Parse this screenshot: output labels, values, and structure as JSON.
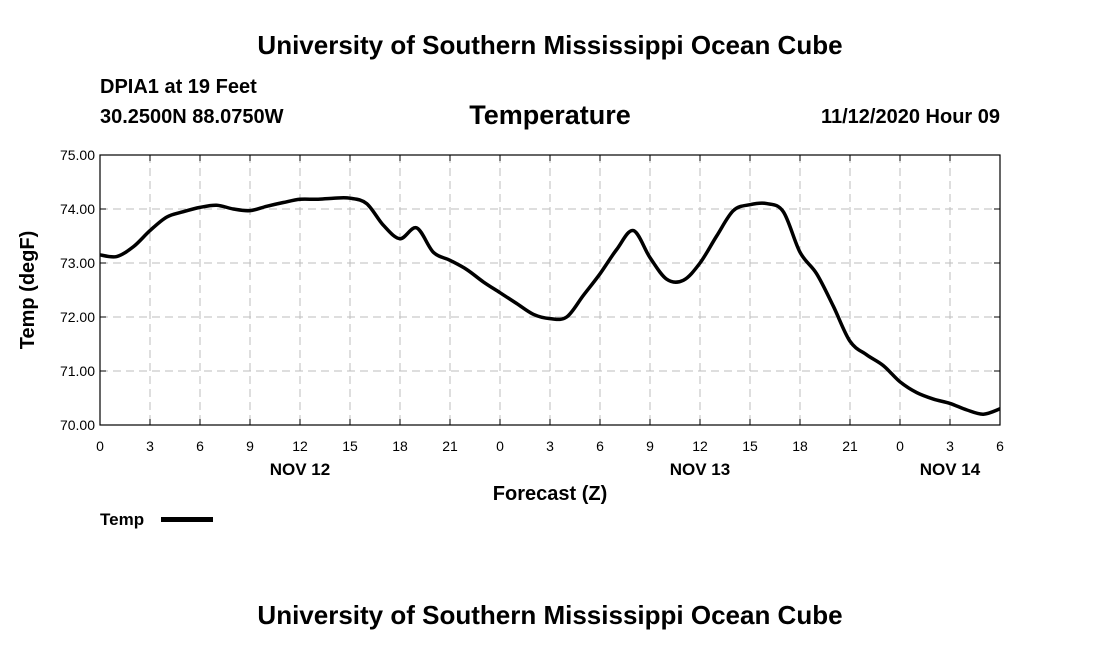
{
  "header": {
    "title_top": "University of Southern Mississippi Ocean Cube",
    "station": "DPIA1 at 19 Feet",
    "coords": "30.2500N 88.0750W",
    "datetime": "11/12/2020 Hour 09"
  },
  "footer": {
    "title_bottom": "University of Southern Mississippi Ocean Cube"
  },
  "legend": {
    "label": "Temp"
  },
  "chart_data": {
    "type": "line",
    "title": "Temperature",
    "xlabel": "Forecast (Z)",
    "ylabel": "Temp (degF)",
    "xlim": [
      0,
      54
    ],
    "ylim": [
      70,
      75
    ],
    "grid": true,
    "x_ticks": [
      0,
      3,
      6,
      9,
      12,
      15,
      18,
      21,
      24,
      27,
      30,
      33,
      36,
      39,
      42,
      45,
      48,
      51,
      54
    ],
    "x_tick_labels": [
      "0",
      "3",
      "6",
      "9",
      "12",
      "15",
      "18",
      "21",
      "0",
      "3",
      "6",
      "9",
      "12",
      "15",
      "18",
      "21",
      "0",
      "3",
      "6"
    ],
    "y_ticks": [
      70,
      71,
      72,
      73,
      74,
      75
    ],
    "y_tick_labels": [
      "70.00",
      "71.00",
      "72.00",
      "73.00",
      "74.00",
      "75.00"
    ],
    "date_labels": [
      {
        "x": 12,
        "label": "NOV 12"
      },
      {
        "x": 36,
        "label": "NOV 13"
      },
      {
        "x": 51,
        "label": "NOV 14"
      }
    ],
    "series": [
      {
        "name": "Temp",
        "x": [
          0,
          1,
          2,
          3,
          4,
          5,
          6,
          7,
          8,
          9,
          10,
          11,
          12,
          13,
          14,
          15,
          16,
          17,
          18,
          19,
          20,
          21,
          22,
          23,
          24,
          25,
          26,
          27,
          28,
          29,
          30,
          31,
          32,
          33,
          34,
          35,
          36,
          37,
          38,
          39,
          40,
          41,
          42,
          43,
          44,
          45,
          46,
          47,
          48,
          49,
          50,
          51,
          52,
          53,
          54
        ],
        "values": [
          73.15,
          73.12,
          73.3,
          73.6,
          73.85,
          73.95,
          74.03,
          74.07,
          74.0,
          73.97,
          74.05,
          74.12,
          74.18,
          74.18,
          74.2,
          74.2,
          74.1,
          73.7,
          73.45,
          73.65,
          73.2,
          73.05,
          72.88,
          72.65,
          72.45,
          72.25,
          72.05,
          71.97,
          72.0,
          72.4,
          72.8,
          73.25,
          73.6,
          73.1,
          72.7,
          72.68,
          73.0,
          73.5,
          73.97,
          74.08,
          74.1,
          73.95,
          73.2,
          72.8,
          72.2,
          71.55,
          71.3,
          71.1,
          70.8,
          70.6,
          70.48,
          70.4,
          70.28,
          70.2,
          70.3
        ]
      }
    ]
  }
}
